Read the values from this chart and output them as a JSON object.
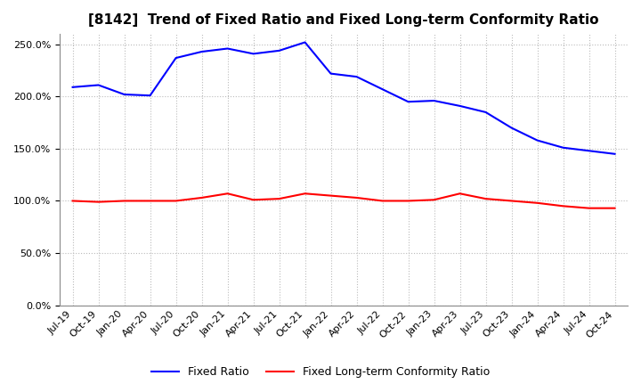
{
  "title": "[8142]  Trend of Fixed Ratio and Fixed Long-term Conformity Ratio",
  "x_labels": [
    "Jul-19",
    "Oct-19",
    "Jan-20",
    "Apr-20",
    "Jul-20",
    "Oct-20",
    "Jan-21",
    "Apr-21",
    "Jul-21",
    "Oct-21",
    "Jan-22",
    "Apr-22",
    "Jul-22",
    "Oct-22",
    "Jan-23",
    "Apr-23",
    "Jul-23",
    "Oct-23",
    "Jan-24",
    "Apr-24",
    "Jul-24",
    "Oct-24"
  ],
  "fixed_ratio": [
    209,
    211,
    202,
    201,
    237,
    243,
    246,
    241,
    244,
    252,
    222,
    219,
    207,
    195,
    196,
    191,
    185,
    170,
    158,
    151,
    148,
    145
  ],
  "fixed_lt_ratio": [
    100,
    99,
    100,
    100,
    100,
    103,
    107,
    101,
    102,
    107,
    105,
    103,
    100,
    100,
    101,
    107,
    102,
    100,
    98,
    95,
    93,
    93
  ],
  "ylim": [
    0,
    260
  ],
  "yticks": [
    0,
    50,
    100,
    150,
    200,
    250
  ],
  "fixed_ratio_color": "#0000FF",
  "fixed_lt_ratio_color": "#FF0000",
  "background_color": "#FFFFFF",
  "grid_color": "#BBBBBB",
  "legend_labels": [
    "Fixed Ratio",
    "Fixed Long-term Conformity Ratio"
  ],
  "title_fontsize": 11,
  "tick_fontsize": 8,
  "legend_fontsize": 9
}
